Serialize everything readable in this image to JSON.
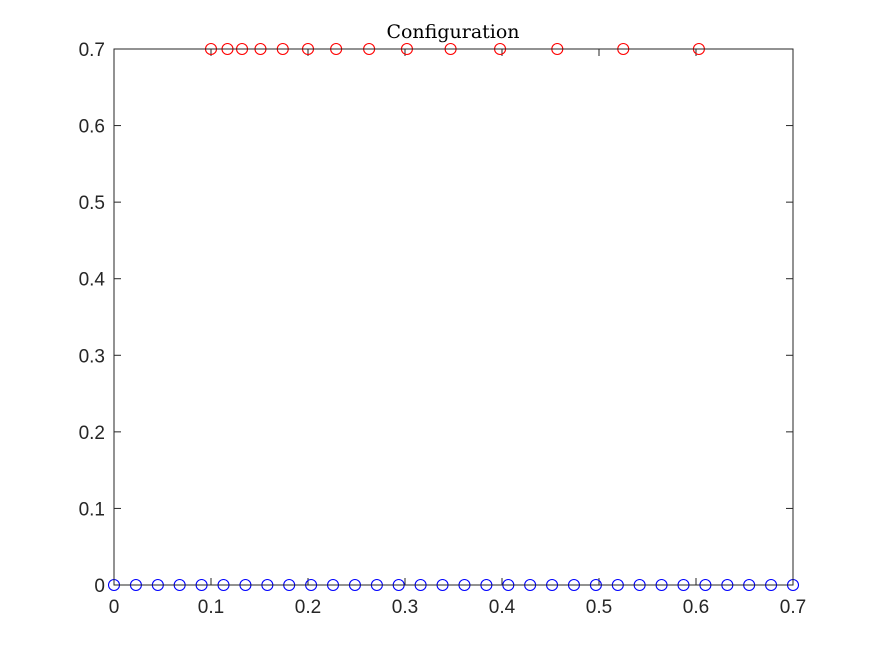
{
  "chart_data": {
    "type": "scatter",
    "title": "Configuration",
    "xlabel": "",
    "ylabel": "",
    "xlim": [
      0,
      0.7
    ],
    "ylim": [
      0,
      0.7
    ],
    "xticks": [
      0,
      0.1,
      0.2,
      0.3,
      0.4,
      0.5,
      0.6,
      0.7
    ],
    "yticks": [
      0,
      0.1,
      0.2,
      0.3,
      0.4,
      0.5,
      0.6,
      0.7
    ],
    "xtick_labels": [
      "0",
      "0.1",
      "0.2",
      "0.3",
      "0.4",
      "0.5",
      "0.6",
      "0.7"
    ],
    "ytick_labels": [
      "0",
      "0.1",
      "0.2",
      "0.3",
      "0.4",
      "0.5",
      "0.6",
      "0.7"
    ],
    "grid": false,
    "legend": "none",
    "series": [
      {
        "marker": "circle",
        "color": "#ff0000",
        "x": [
          0.1,
          0.117,
          0.132,
          0.151,
          0.174,
          0.2,
          0.229,
          0.263,
          0.302,
          0.347,
          0.398,
          0.457,
          0.525,
          0.603
        ],
        "y": [
          0.7,
          0.7,
          0.7,
          0.7,
          0.7,
          0.7,
          0.7,
          0.7,
          0.7,
          0.7,
          0.7,
          0.7,
          0.7,
          0.7
        ]
      },
      {
        "marker": "circle",
        "color": "#0000ff",
        "x": [
          0,
          0.0226,
          0.0452,
          0.0677,
          0.0903,
          0.1129,
          0.1355,
          0.1581,
          0.1806,
          0.2032,
          0.2258,
          0.2484,
          0.271,
          0.2935,
          0.3161,
          0.3387,
          0.3613,
          0.3839,
          0.4065,
          0.429,
          0.4516,
          0.4742,
          0.4968,
          0.5194,
          0.5419,
          0.5645,
          0.5871,
          0.6097,
          0.6323,
          0.6548,
          0.6774,
          0.7
        ],
        "y": [
          0,
          0,
          0,
          0,
          0,
          0,
          0,
          0,
          0,
          0,
          0,
          0,
          0,
          0,
          0,
          0,
          0,
          0,
          0,
          0,
          0,
          0,
          0,
          0,
          0,
          0,
          0,
          0,
          0,
          0,
          0,
          0
        ]
      }
    ]
  }
}
